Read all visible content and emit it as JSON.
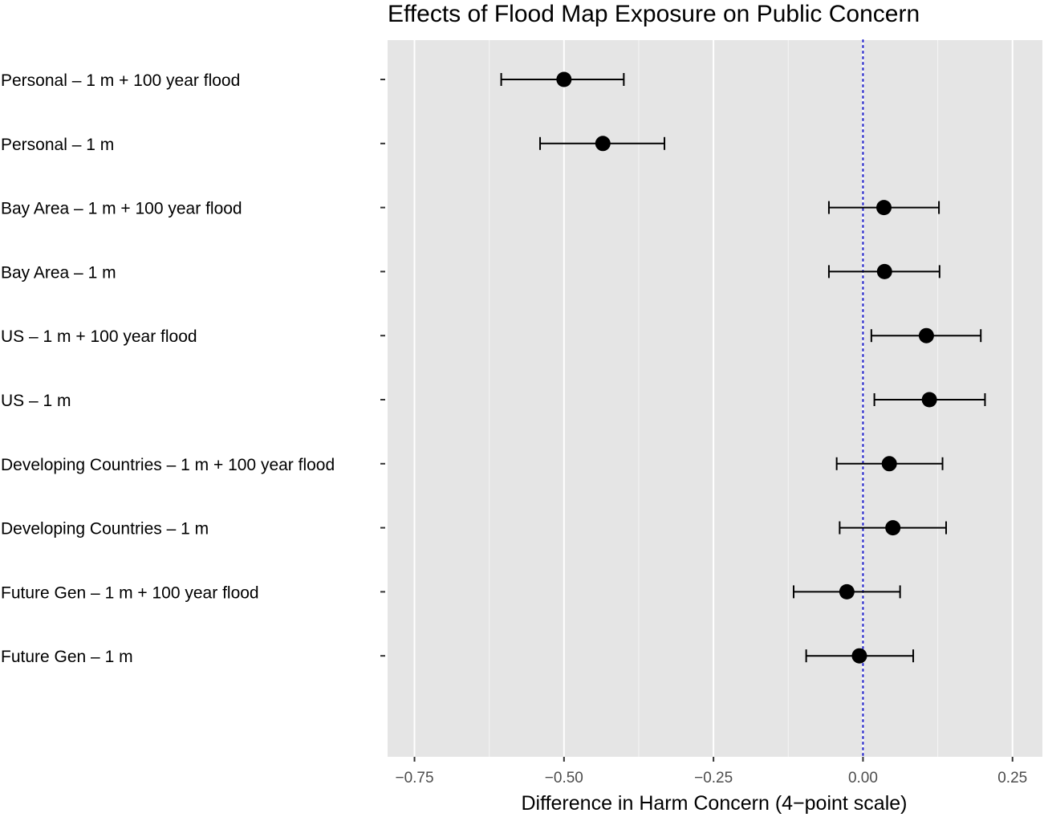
{
  "chart_data": {
    "type": "scatter",
    "subtype": "coefficient-plot-with-error-bars",
    "title": "Effects of Flood Map Exposure on Public Concern",
    "xlabel": "Difference in Harm Concern (4−point scale)",
    "ylabel": "",
    "xlim": [
      -0.795,
      0.3
    ],
    "x_ticks": [
      -0.75,
      -0.5,
      -0.25,
      0.0,
      0.25
    ],
    "x_tick_labels": [
      "−0.75",
      "−0.50",
      "−0.25",
      "0.00",
      "0.25"
    ],
    "reference_line": {
      "x": 0.0,
      "style": "dotted",
      "color": "#1a1acc"
    },
    "grid": true,
    "panel_background": "#e5e5e5",
    "point_color": "#000000",
    "rows": [
      {
        "label": "Personal –  1 m + 100 year flood",
        "estimate": -0.5,
        "lower": -0.605,
        "upper": -0.4
      },
      {
        "label": "Personal – 1 m",
        "estimate": -0.435,
        "lower": -0.54,
        "upper": -0.332
      },
      {
        "label": "Bay Area – 1 m + 100 year flood",
        "estimate": 0.035,
        "lower": -0.057,
        "upper": 0.127
      },
      {
        "label": "Bay Area – 1 m",
        "estimate": 0.036,
        "lower": -0.057,
        "upper": 0.128
      },
      {
        "label": "US – 1 m + 100 year flood",
        "estimate": 0.106,
        "lower": 0.014,
        "upper": 0.197
      },
      {
        "label": "US – 1 m",
        "estimate": 0.111,
        "lower": 0.019,
        "upper": 0.204
      },
      {
        "label": "Developing Countries – 1 m + 100 year flood",
        "estimate": 0.044,
        "lower": -0.044,
        "upper": 0.133
      },
      {
        "label": "Developing Countries – 1 m",
        "estimate": 0.05,
        "lower": -0.039,
        "upper": 0.139
      },
      {
        "label": "Future Gen – 1 m + 100 year flood",
        "estimate": -0.027,
        "lower": -0.116,
        "upper": 0.062
      },
      {
        "label": "Future Gen – 1 m",
        "estimate": -0.006,
        "lower": -0.095,
        "upper": 0.084
      }
    ]
  }
}
